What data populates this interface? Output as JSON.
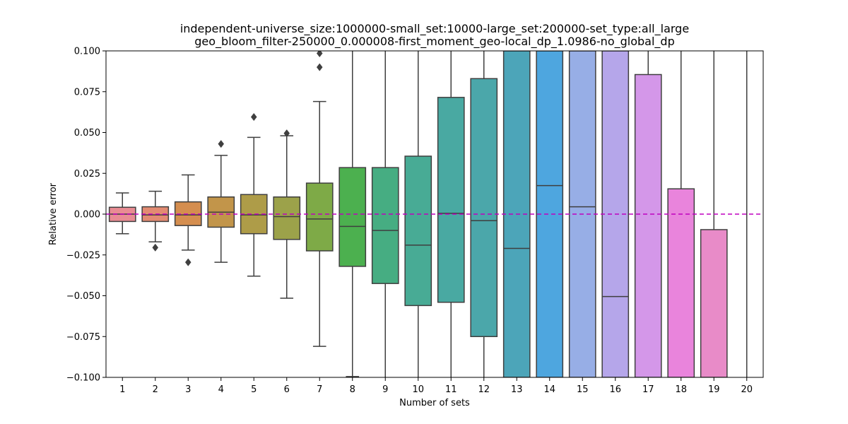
{
  "chart_data": {
    "type": "box",
    "title_line1": "independent-universe_size:1000000-small_set:10000-large_set:200000-set_type:all_large",
    "title_line2": "geo_bloom_filter-250000_0.000008-first_moment_geo-local_dp_1.0986-no_global_dp",
    "xlabel": "Number of sets",
    "ylabel": "Relative error",
    "ylim": [
      -0.1,
      0.1
    ],
    "yticks": [
      -0.1,
      -0.075,
      -0.05,
      -0.025,
      0.0,
      0.025,
      0.05,
      0.075,
      0.1
    ],
    "ytick_labels": [
      "−0.100",
      "−0.075",
      "−0.050",
      "−0.025",
      "0.000",
      "0.025",
      "0.050",
      "0.075",
      "0.100"
    ],
    "reference_line": {
      "y": 0.0,
      "style": "dashed",
      "color": "#bf00bf"
    },
    "grid": false,
    "categories": [
      "1",
      "2",
      "3",
      "4",
      "5",
      "6",
      "7",
      "8",
      "9",
      "10",
      "11",
      "12",
      "13",
      "14",
      "15",
      "16",
      "17",
      "18",
      "19",
      "20"
    ],
    "boxes": [
      {
        "label": "1",
        "color": "#e98c93",
        "whisker_low": -0.012,
        "q1": -0.0045,
        "median": 0.0,
        "q3": 0.0042,
        "whisker_high": 0.013,
        "outliers": []
      },
      {
        "label": "2",
        "color": "#e38b72",
        "whisker_low": -0.017,
        "q1": -0.0045,
        "median": -0.0005,
        "q3": 0.0045,
        "whisker_high": 0.014,
        "outliers": [
          -0.0205
        ]
      },
      {
        "label": "3",
        "color": "#d58e4f",
        "whisker_low": -0.022,
        "q1": -0.007,
        "median": -0.0005,
        "q3": 0.0075,
        "whisker_high": 0.024,
        "outliers": [
          -0.0295
        ]
      },
      {
        "label": "4",
        "color": "#c2954a",
        "whisker_low": -0.0295,
        "q1": -0.008,
        "median": 0.0012,
        "q3": 0.0105,
        "whisker_high": 0.036,
        "outliers": [
          0.043
        ]
      },
      {
        "label": "5",
        "color": "#ae9c48",
        "whisker_low": -0.038,
        "q1": -0.012,
        "median": -0.0005,
        "q3": 0.012,
        "whisker_high": 0.047,
        "outliers": [
          0.0595
        ]
      },
      {
        "label": "6",
        "color": "#9ca24a",
        "whisker_low": -0.0515,
        "q1": -0.0155,
        "median": -0.0015,
        "q3": 0.0105,
        "whisker_high": 0.048,
        "outliers": [
          0.0495
        ]
      },
      {
        "label": "7",
        "color": "#7eaa47",
        "whisker_low": -0.081,
        "q1": -0.0225,
        "median": -0.003,
        "q3": 0.019,
        "whisker_high": 0.069,
        "outliers": [
          0.09,
          0.0985
        ]
      },
      {
        "label": "8",
        "color": "#4cb04f",
        "whisker_low": -0.0995,
        "q1": -0.032,
        "median": -0.0075,
        "q3": 0.0285,
        "whisker_high": 0.1,
        "outliers": []
      },
      {
        "label": "9",
        "color": "#46ad82",
        "whisker_low": -0.1,
        "q1": -0.0425,
        "median": -0.01,
        "q3": 0.0285,
        "whisker_high": 0.1,
        "outliers": []
      },
      {
        "label": "10",
        "color": "#48ab95",
        "whisker_low": -0.1,
        "q1": -0.056,
        "median": -0.019,
        "q3": 0.0355,
        "whisker_high": 0.1,
        "outliers": []
      },
      {
        "label": "11",
        "color": "#49a9a2",
        "whisker_low": -0.1,
        "q1": -0.054,
        "median": 0.0005,
        "q3": 0.0715,
        "whisker_high": 0.1,
        "outliers": []
      },
      {
        "label": "12",
        "color": "#4ba7aa",
        "whisker_low": -0.1,
        "q1": -0.075,
        "median": -0.004,
        "q3": 0.083,
        "whisker_high": 0.1,
        "outliers": []
      },
      {
        "label": "13",
        "color": "#4ca5b9",
        "whisker_low": -0.1,
        "q1": -0.1,
        "median": -0.021,
        "q3": 0.1,
        "whisker_high": 0.1,
        "outliers": []
      },
      {
        "label": "14",
        "color": "#4ea6df",
        "whisker_low": -0.1,
        "q1": -0.1,
        "median": 0.0175,
        "q3": 0.1,
        "whisker_high": 0.1,
        "outliers": []
      },
      {
        "label": "15",
        "color": "#97aee6",
        "whisker_low": -0.1,
        "q1": -0.1,
        "median": 0.0045,
        "q3": 0.1,
        "whisker_high": 0.1,
        "outliers": []
      },
      {
        "label": "16",
        "color": "#b5a6ea",
        "whisker_low": -0.1,
        "q1": -0.1,
        "median": -0.0505,
        "q3": 0.1,
        "whisker_high": 0.1,
        "outliers": []
      },
      {
        "label": "17",
        "color": "#d497e9",
        "whisker_low": -0.1,
        "q1": -0.1,
        "median": -0.1,
        "q3": 0.0855,
        "whisker_high": 0.1,
        "outliers": []
      },
      {
        "label": "18",
        "color": "#e984dc",
        "whisker_low": -0.1,
        "q1": -0.1,
        "median": -0.1,
        "q3": 0.0155,
        "whisker_high": 0.1,
        "outliers": []
      },
      {
        "label": "19",
        "color": "#e88bc8",
        "whisker_low": -0.1,
        "q1": -0.1,
        "median": -0.1,
        "q3": -0.0095,
        "whisker_high": 0.1,
        "outliers": []
      },
      {
        "label": "20",
        "color": "#e88bc8",
        "whisker_low": -0.1,
        "q1": null,
        "median": null,
        "q3": null,
        "whisker_high": 0.1,
        "outliers": []
      }
    ]
  }
}
